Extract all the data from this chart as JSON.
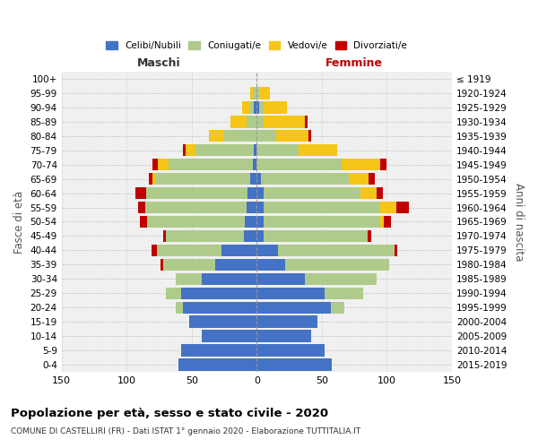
{
  "age_groups": [
    "0-4",
    "5-9",
    "10-14",
    "15-19",
    "20-24",
    "25-29",
    "30-34",
    "35-39",
    "40-44",
    "45-49",
    "50-54",
    "55-59",
    "60-64",
    "65-69",
    "70-74",
    "75-79",
    "80-84",
    "85-89",
    "90-94",
    "95-99",
    "100+"
  ],
  "birth_years": [
    "2015-2019",
    "2010-2014",
    "2005-2009",
    "2000-2004",
    "1995-1999",
    "1990-1994",
    "1985-1989",
    "1980-1984",
    "1975-1979",
    "1970-1974",
    "1965-1969",
    "1960-1964",
    "1955-1959",
    "1950-1954",
    "1945-1949",
    "1940-1944",
    "1935-1939",
    "1930-1934",
    "1925-1929",
    "1920-1924",
    "≤ 1919"
  ],
  "male": {
    "celibi": [
      60,
      58,
      42,
      52,
      57,
      58,
      42,
      32,
      27,
      10,
      9,
      8,
      7,
      5,
      3,
      2,
      0,
      0,
      2,
      0,
      0
    ],
    "coniugati": [
      0,
      0,
      0,
      0,
      5,
      12,
      20,
      40,
      50,
      60,
      75,
      78,
      78,
      73,
      65,
      45,
      25,
      8,
      4,
      2,
      0
    ],
    "vedovi": [
      0,
      0,
      0,
      0,
      0,
      0,
      0,
      0,
      0,
      0,
      0,
      0,
      0,
      2,
      8,
      8,
      12,
      12,
      5,
      3,
      0
    ],
    "divorziati": [
      0,
      0,
      0,
      0,
      0,
      0,
      0,
      2,
      4,
      2,
      6,
      5,
      8,
      3,
      4,
      2,
      0,
      0,
      0,
      0,
      0
    ]
  },
  "female": {
    "nubili": [
      58,
      52,
      42,
      47,
      57,
      52,
      37,
      22,
      16,
      5,
      5,
      5,
      5,
      3,
      0,
      0,
      0,
      0,
      2,
      0,
      0
    ],
    "coniugate": [
      0,
      0,
      0,
      0,
      10,
      30,
      55,
      80,
      90,
      80,
      90,
      90,
      75,
      68,
      65,
      32,
      15,
      5,
      3,
      2,
      0
    ],
    "vedove": [
      0,
      0,
      0,
      0,
      0,
      0,
      0,
      0,
      0,
      0,
      3,
      12,
      12,
      15,
      30,
      30,
      25,
      32,
      18,
      8,
      0
    ],
    "divorziate": [
      0,
      0,
      0,
      0,
      0,
      0,
      0,
      0,
      2,
      3,
      5,
      10,
      5,
      5,
      5,
      0,
      2,
      2,
      0,
      0,
      0
    ]
  },
  "colors": {
    "celibi": "#4472C4",
    "coniugati": "#AECB8C",
    "vedovi": "#F5C518",
    "divorziati": "#C00000"
  },
  "xlim": 150,
  "title": "Popolazione per età, sesso e stato civile - 2020",
  "subtitle": "COMUNE DI CASTELLIRI (FR) - Dati ISTAT 1° gennaio 2020 - Elaborazione TUTTITALIA.IT",
  "xlabel_left": "Maschi",
  "xlabel_right": "Femmine",
  "ylabel": "Fasce di età",
  "ylabel_right": "Anni di nascita",
  "legend_labels": [
    "Celibi/Nubili",
    "Coniugati/e",
    "Vedovi/e",
    "Divorziati/e"
  ],
  "bg_color": "#f0f0f0"
}
